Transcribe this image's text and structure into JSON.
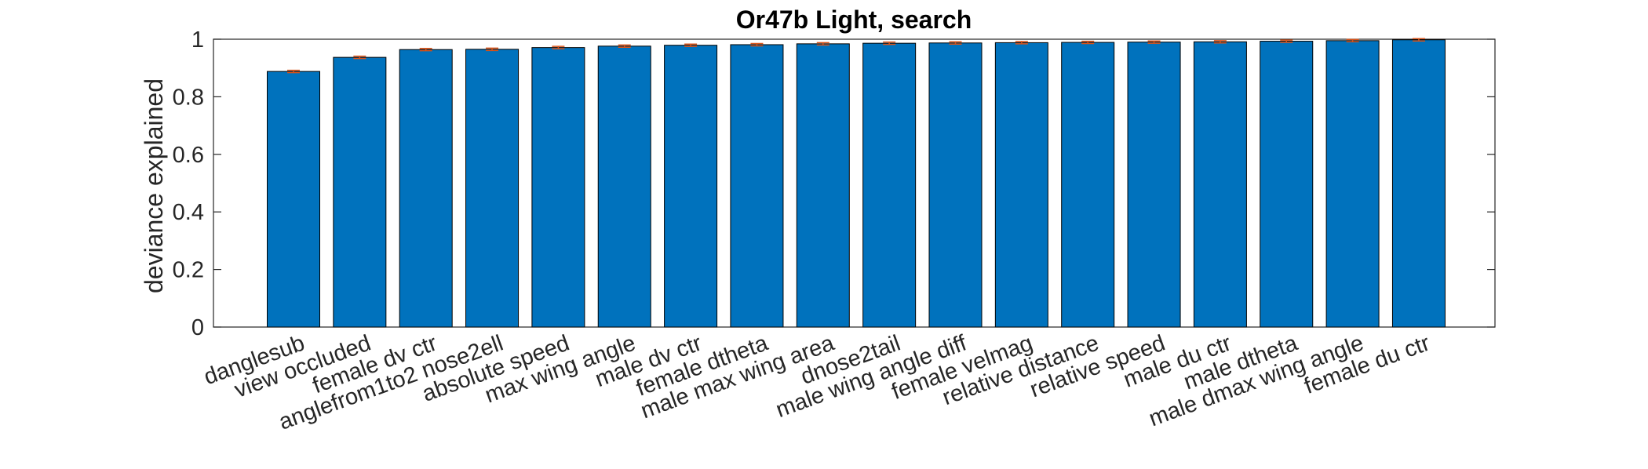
{
  "chart_data": {
    "type": "bar",
    "title": "Or47b Light, search",
    "xlabel": "",
    "ylabel": "deviance explained",
    "ylim": [
      0,
      1
    ],
    "yticks": [
      0,
      0.2,
      0.4,
      0.6,
      0.8,
      1
    ],
    "ytick_labels": [
      "0",
      "0.2",
      "0.4",
      "0.6",
      "0.8",
      "1"
    ],
    "bar_color": "#0072BD",
    "errorbar_color": "#D95319",
    "grid": false,
    "categories": [
      "danglesub",
      "view occluded",
      "female dv ctr",
      "anglefrom1to2 nose2ell",
      "absolute speed",
      "max wing angle",
      "male dv ctr",
      "female dtheta",
      "male max wing area",
      "dnose2tail",
      "male wing angle diff",
      "female velmag",
      "relative distance",
      "relative speed",
      "male du ctr",
      "male dtheta",
      "male dmax wing angle",
      "female du ctr"
    ],
    "values": [
      0.888,
      0.937,
      0.964,
      0.965,
      0.971,
      0.976,
      0.979,
      0.981,
      0.984,
      0.986,
      0.987,
      0.988,
      0.989,
      0.99,
      0.991,
      0.993,
      0.995,
      0.998
    ],
    "errors": [
      0.004,
      0.004,
      0.004,
      0.004,
      0.004,
      0.004,
      0.004,
      0.004,
      0.004,
      0.004,
      0.004,
      0.004,
      0.004,
      0.004,
      0.004,
      0.004,
      0.004,
      0.004
    ]
  }
}
